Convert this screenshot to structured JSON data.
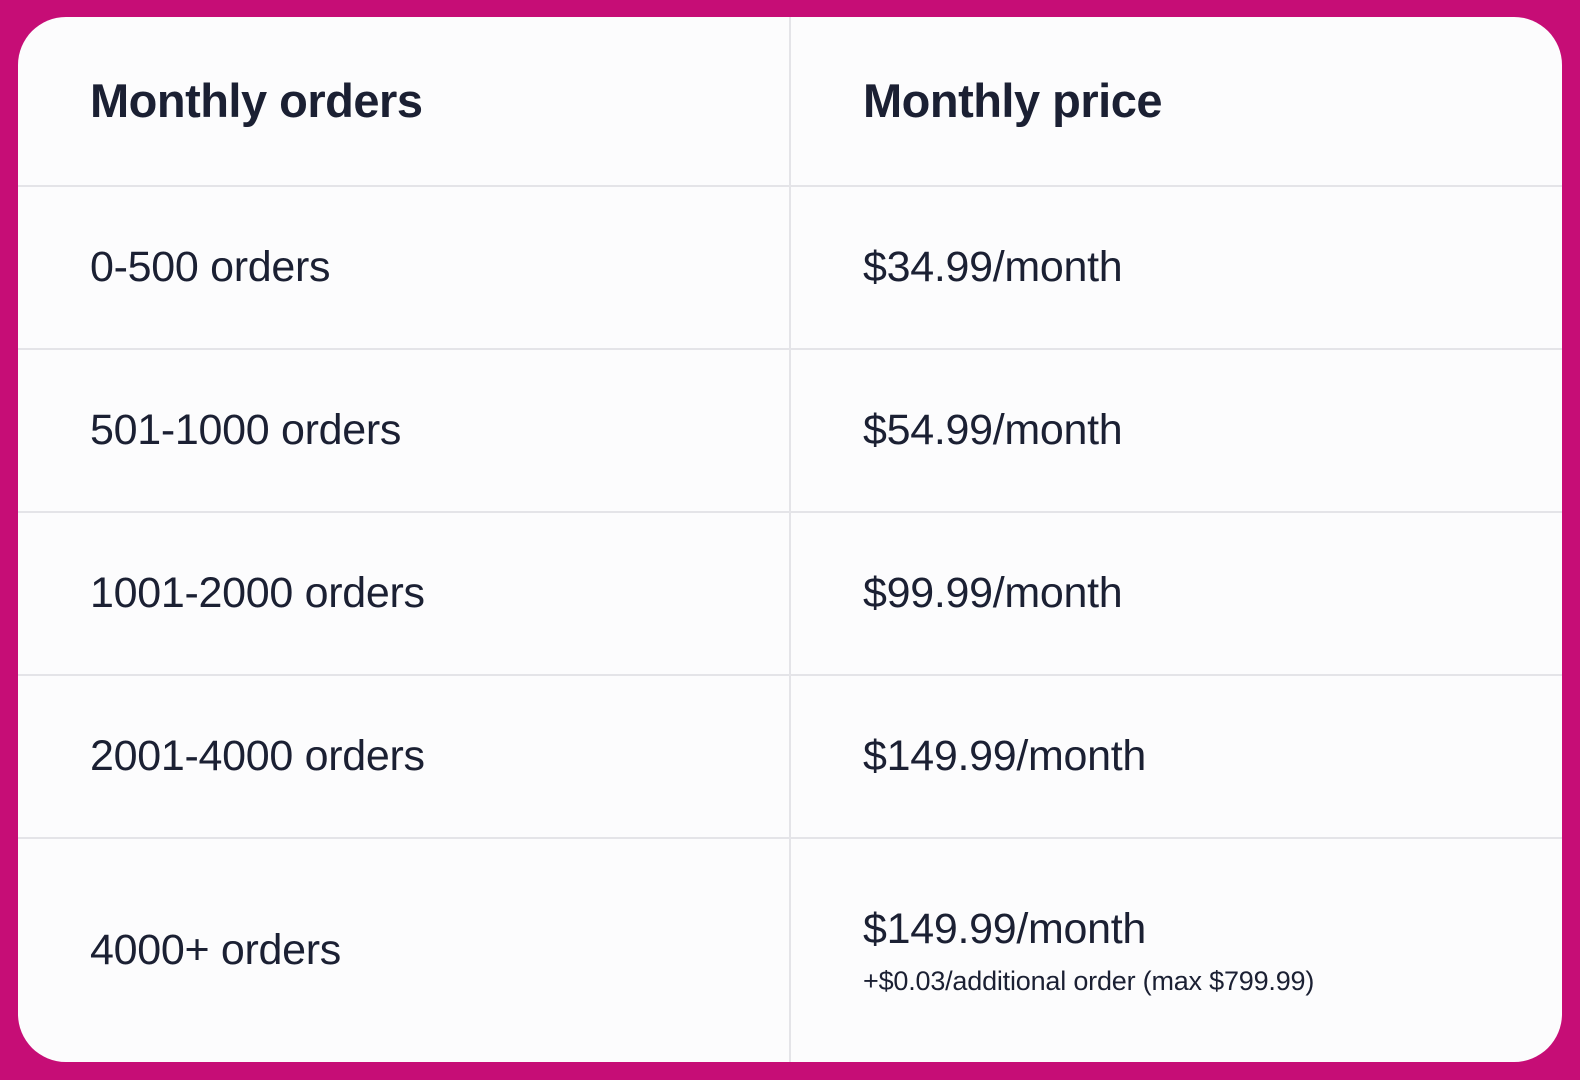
{
  "frame": {
    "color": "#C60D76"
  },
  "card": {
    "bg": "#FCFCFD",
    "divider": "#E4E4E8",
    "text_color": "#1B2033"
  },
  "table": {
    "headers": {
      "orders": "Monthly orders",
      "price": "Monthly price"
    },
    "rows": [
      {
        "orders": "0-500 orders",
        "price": "$34.99/month",
        "note": ""
      },
      {
        "orders": "501-1000 orders",
        "price": "$54.99/month",
        "note": ""
      },
      {
        "orders": "1001-2000 orders",
        "price": "$99.99/month",
        "note": ""
      },
      {
        "orders": "2001-4000 orders",
        "price": "$149.99/month",
        "note": ""
      },
      {
        "orders": "4000+ orders",
        "price": "$149.99/month",
        "note": "+$0.03/additional order (max $799.99)"
      }
    ]
  },
  "chart_data": {
    "type": "table",
    "columns": [
      "Monthly orders",
      "Monthly price"
    ],
    "rows": [
      [
        "0-500 orders",
        "$34.99/month"
      ],
      [
        "501-1000 orders",
        "$54.99/month"
      ],
      [
        "1001-2000 orders",
        "$99.99/month"
      ],
      [
        "2001-4000 orders",
        "$149.99/month"
      ],
      [
        "4000+ orders",
        "$149.99/month +$0.03/additional order (max $799.99)"
      ]
    ],
    "title": "",
    "layout_hints": {
      "header_row": true,
      "column_divider": true,
      "row_dividers": true
    }
  }
}
